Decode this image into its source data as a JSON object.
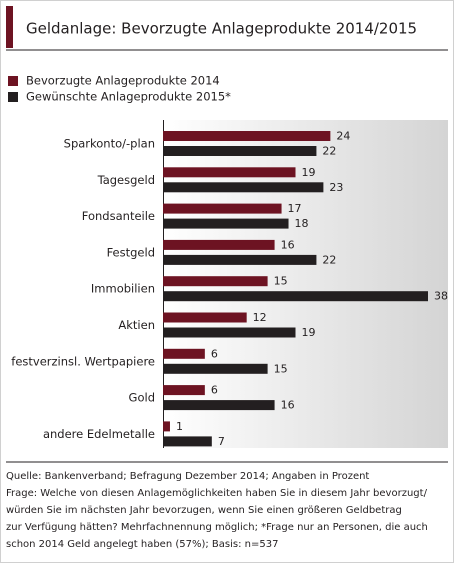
{
  "chart_data": {
    "type": "bar",
    "orientation": "horizontal",
    "title": "Geldanlage: Bevorzugte Anlageprodukte 2014/2015",
    "categories": [
      "Sparkonto/-plan",
      "Tagesgeld",
      "Fondsanteile",
      "Festgeld",
      "Immobilien",
      "Aktien",
      "festverzinsl. Wertpapiere",
      "Gold",
      "andere Edelmetalle"
    ],
    "series": [
      {
        "name": "Bevorzugte Anlageprodukte 2014",
        "color": "#6d1322",
        "values": [
          24,
          19,
          17,
          16,
          15,
          12,
          6,
          6,
          1
        ]
      },
      {
        "name": "Gewünschte Anlageprodukte 2015*",
        "color": "#231f20",
        "values": [
          22,
          23,
          18,
          22,
          38,
          19,
          15,
          16,
          7
        ]
      }
    ],
    "footnotes": [
      "Quelle: Bankenverband; Befragung Dezember 2014; Angaben in Prozent",
      "Frage: Welche von diesen Anlagemöglichkeiten haben Sie in diesem Jahr bevorzugt/",
      "würden Sie im nächsten Jahr bevorzugen, wenn Sie einen größeren Geldbetrag",
      "zur Verfügung hätten? Mehrfachnennung möglich; *Frage nur an Personen, die auch",
      "schon 2014 Geld angelegt haben (57%); Basis: n=537"
    ]
  }
}
